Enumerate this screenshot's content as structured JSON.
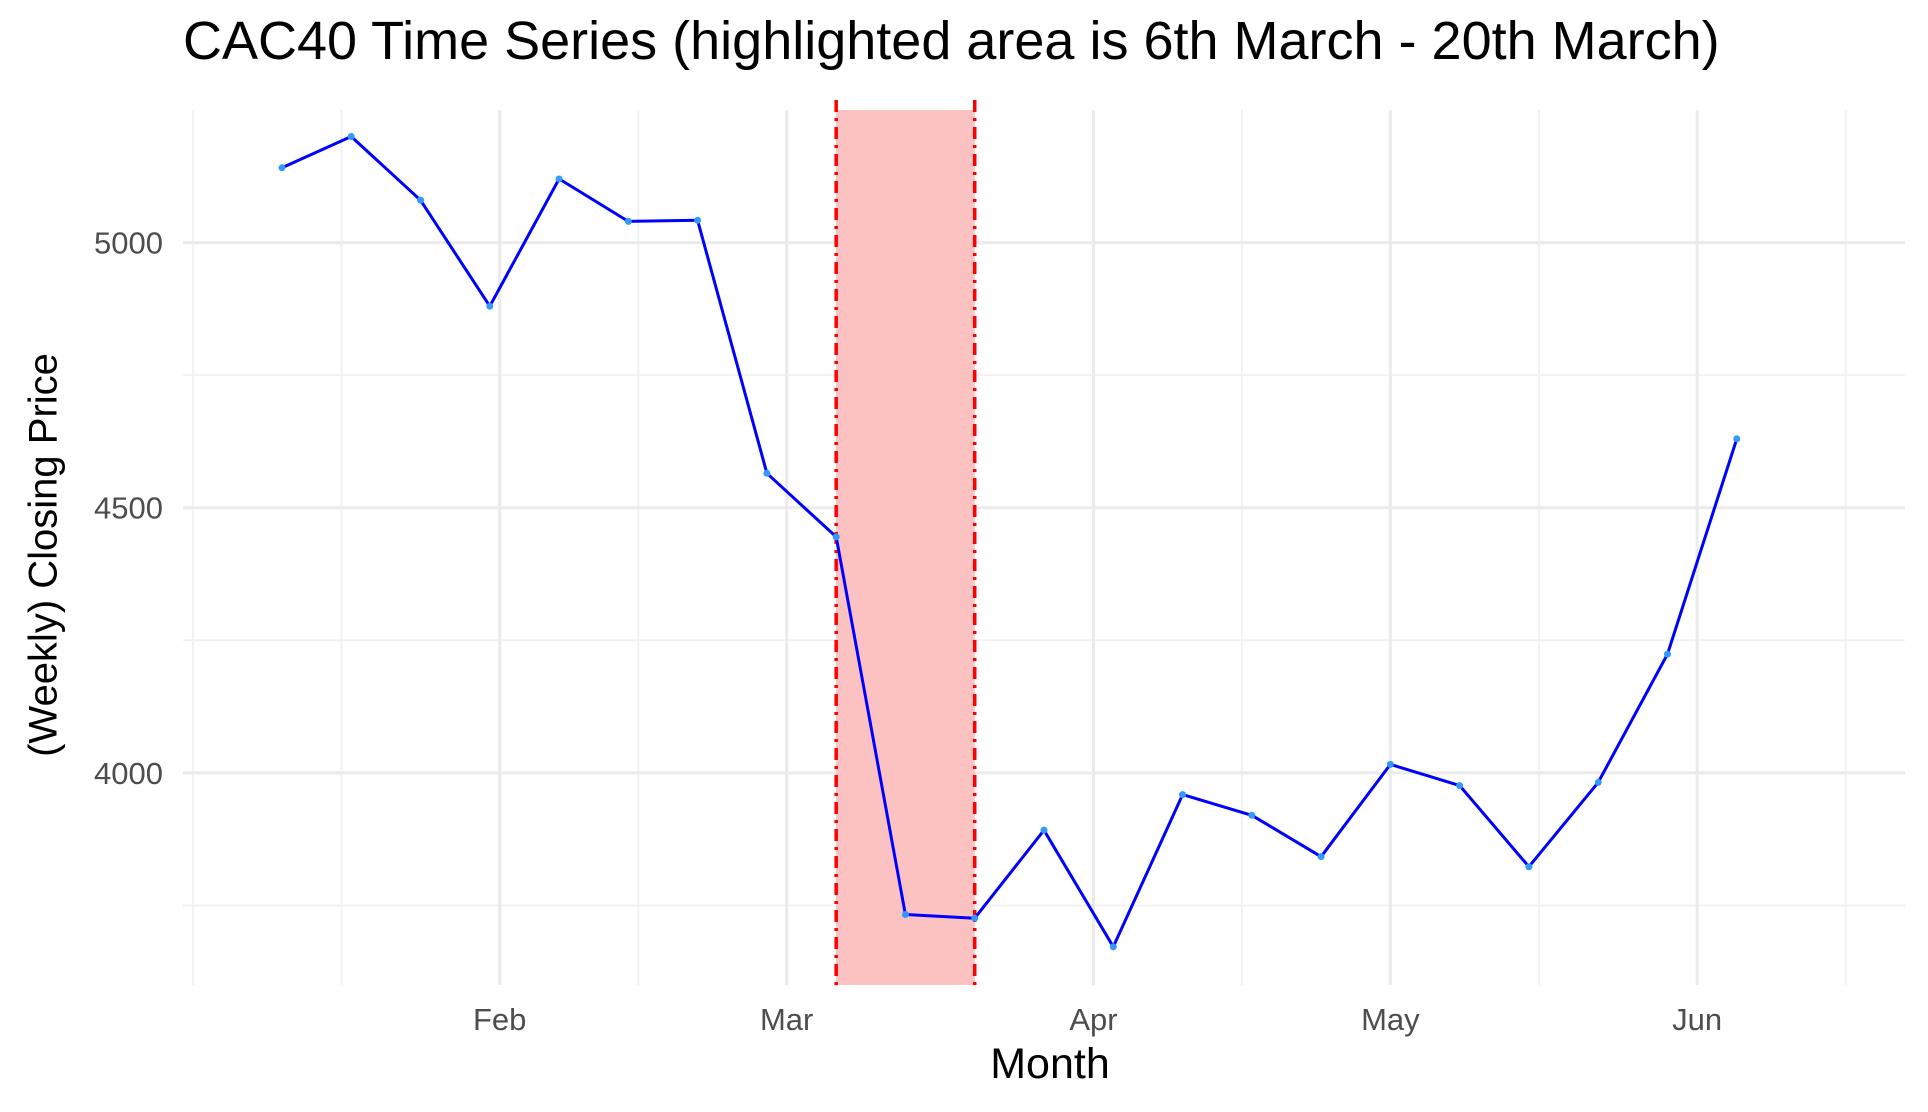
{
  "chart_data": {
    "type": "line",
    "title": "CAC40 Time Series (highlighted area is 6th March - 20th March)",
    "xlabel": "Month",
    "ylabel": "(Weekly) Closing Price",
    "x_tick_labels": [
      "Feb",
      "Mar",
      "Apr",
      "May",
      "Jun"
    ],
    "y_ticks": [
      4000,
      4500,
      5000
    ],
    "ylim": [
      3600,
      5250
    ],
    "grid": true,
    "highlight": {
      "start": "2020-03-06",
      "end": "2020-03-20",
      "color": "#fcc2c2",
      "border_color": "#ff0000"
    },
    "series": [
      {
        "color": "#0000ff",
        "point_color": "#3399ff",
        "x": [
          "2020-01-10",
          "2020-01-17",
          "2020-01-24",
          "2020-01-31",
          "2020-02-07",
          "2020-02-14",
          "2020-02-21",
          "2020-02-28",
          "2020-03-06",
          "2020-03-13",
          "2020-03-20",
          "2020-03-27",
          "2020-04-03",
          "2020-04-10",
          "2020-04-17",
          "2020-04-24",
          "2020-05-01",
          "2020-05-08",
          "2020-05-15",
          "2020-05-22",
          "2020-05-29",
          "2020-06-05"
        ],
        "values": [
          5141,
          5200,
          5080,
          4880,
          5120,
          5040,
          5042,
          4565,
          4445,
          3733,
          3726,
          3892,
          3672,
          3959,
          3920,
          3842,
          4016,
          3976,
          3823,
          3982,
          4224,
          4630
        ]
      }
    ]
  }
}
